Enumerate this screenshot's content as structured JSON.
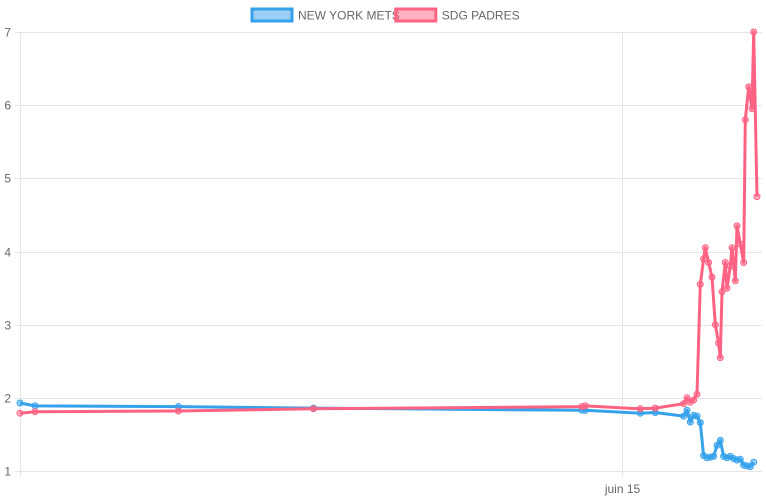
{
  "chart_data": {
    "type": "line",
    "title": "",
    "xlabel": "",
    "ylabel": "",
    "ylim": [
      1,
      7
    ],
    "y_ticks": [
      "1",
      "2",
      "3",
      "4",
      "5",
      "6",
      "7"
    ],
    "x_tick_labels": [
      "juin 15"
    ],
    "x_tick_values": [
      36.1
    ],
    "xlim": [
      0,
      44.5
    ],
    "grid": true,
    "legend_position": "top",
    "series": [
      {
        "name": "NEW YORK METS",
        "color": "#36a2eb",
        "fill": "rgba(54,162,235,0.5)",
        "points": [
          {
            "x": 0.0,
            "y": 1.93
          },
          {
            "x": 0.9,
            "y": 1.89
          },
          {
            "x": 9.5,
            "y": 1.88
          },
          {
            "x": 17.6,
            "y": 1.86
          },
          {
            "x": 33.7,
            "y": 1.83
          },
          {
            "x": 33.9,
            "y": 1.83
          },
          {
            "x": 37.2,
            "y": 1.79
          },
          {
            "x": 38.1,
            "y": 1.8
          },
          {
            "x": 39.8,
            "y": 1.75
          },
          {
            "x": 40.0,
            "y": 1.83
          },
          {
            "x": 40.2,
            "y": 1.67
          },
          {
            "x": 40.4,
            "y": 1.76
          },
          {
            "x": 40.6,
            "y": 1.75
          },
          {
            "x": 40.8,
            "y": 1.66
          },
          {
            "x": 41.0,
            "y": 1.21
          },
          {
            "x": 41.2,
            "y": 1.18
          },
          {
            "x": 41.4,
            "y": 1.19
          },
          {
            "x": 41.6,
            "y": 1.2
          },
          {
            "x": 41.8,
            "y": 1.35
          },
          {
            "x": 42.0,
            "y": 1.42
          },
          {
            "x": 42.2,
            "y": 1.2
          },
          {
            "x": 42.4,
            "y": 1.18
          },
          {
            "x": 42.6,
            "y": 1.2
          },
          {
            "x": 42.8,
            "y": 1.17
          },
          {
            "x": 43.0,
            "y": 1.15
          },
          {
            "x": 43.2,
            "y": 1.16
          },
          {
            "x": 43.4,
            "y": 1.08
          },
          {
            "x": 43.6,
            "y": 1.07
          },
          {
            "x": 43.8,
            "y": 1.06
          },
          {
            "x": 44.0,
            "y": 1.12
          }
        ]
      },
      {
        "name": "SDG  PADRES",
        "color": "#ff6384",
        "fill": "rgba(255,99,132,0.5)",
        "points": [
          {
            "x": 0.0,
            "y": 1.79
          },
          {
            "x": 0.9,
            "y": 1.81
          },
          {
            "x": 9.5,
            "y": 1.82
          },
          {
            "x": 17.6,
            "y": 1.85
          },
          {
            "x": 33.7,
            "y": 1.88
          },
          {
            "x": 33.9,
            "y": 1.89
          },
          {
            "x": 37.2,
            "y": 1.85
          },
          {
            "x": 38.1,
            "y": 1.86
          },
          {
            "x": 39.8,
            "y": 1.92
          },
          {
            "x": 40.0,
            "y": 2.0
          },
          {
            "x": 40.2,
            "y": 1.94
          },
          {
            "x": 40.4,
            "y": 1.97
          },
          {
            "x": 40.6,
            "y": 2.05
          },
          {
            "x": 40.8,
            "y": 3.55
          },
          {
            "x": 41.0,
            "y": 3.9
          },
          {
            "x": 41.1,
            "y": 4.05
          },
          {
            "x": 41.3,
            "y": 3.85
          },
          {
            "x": 41.5,
            "y": 3.65
          },
          {
            "x": 41.7,
            "y": 3.0
          },
          {
            "x": 41.9,
            "y": 2.75
          },
          {
            "x": 42.0,
            "y": 2.55
          },
          {
            "x": 42.1,
            "y": 3.45
          },
          {
            "x": 42.3,
            "y": 3.85
          },
          {
            "x": 42.4,
            "y": 3.5
          },
          {
            "x": 42.6,
            "y": 3.8
          },
          {
            "x": 42.7,
            "y": 4.05
          },
          {
            "x": 42.9,
            "y": 3.6
          },
          {
            "x": 43.0,
            "y": 4.35
          },
          {
            "x": 43.2,
            "y": 4.1
          },
          {
            "x": 43.4,
            "y": 3.85
          },
          {
            "x": 43.5,
            "y": 5.8
          },
          {
            "x": 43.7,
            "y": 6.25
          },
          {
            "x": 43.9,
            "y": 5.95
          },
          {
            "x": 44.0,
            "y": 7.0
          },
          {
            "x": 44.2,
            "y": 4.75
          }
        ]
      }
    ]
  }
}
